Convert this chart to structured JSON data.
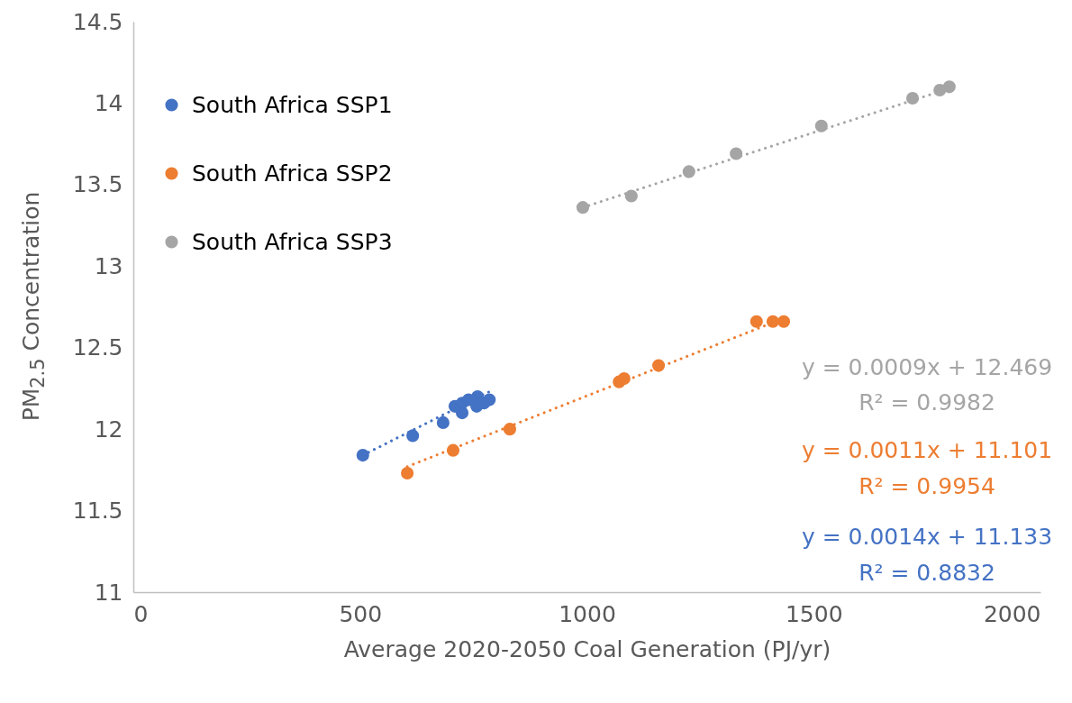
{
  "chart_data": {
    "type": "scatter",
    "xlabel": "Average 2020-2050 Coal Generation (PJ/yr)",
    "ylabel": "PM$_{2.5}$ Concentration",
    "xlim": [
      0,
      2000
    ],
    "xticks": [
      0,
      500,
      1000,
      1500,
      2000
    ],
    "ylim": [
      11,
      14.5
    ],
    "yticks": [
      11,
      11.5,
      12,
      12.5,
      13,
      13.5,
      14,
      14.5
    ],
    "grid": false,
    "legend": "top left",
    "series": [
      {
        "name": "South Africa SSP1",
        "color": "#4472c4",
        "marker": "circle",
        "x": [
          506,
          616,
          683,
          725,
          709,
          725,
          739,
          759,
          757,
          773,
          785
        ],
        "values": [
          11.84,
          11.96,
          12.04,
          12.1,
          12.14,
          12.16,
          12.18,
          12.2,
          12.14,
          12.16,
          12.18
        ]
      },
      {
        "name": "South Africa SSP2",
        "color": "#ed7d31",
        "marker": "circle",
        "x": [
          604,
          705,
          830,
          1071,
          1082,
          1158,
          1374,
          1410,
          1424,
          1434
        ],
        "values": [
          11.73,
          11.87,
          12.0,
          12.29,
          12.31,
          12.39,
          12.66,
          12.66,
          null,
          12.66
        ]
      },
      {
        "name": "South Africa SSP3",
        "color": "#a5a5a5",
        "marker": "circle",
        "x": [
          991,
          1098,
          1225,
          1329,
          1517,
          1718,
          1778,
          1799
        ],
        "values": [
          13.36,
          13.43,
          13.58,
          13.69,
          13.86,
          14.03,
          14.08,
          14.1
        ]
      },
      {
        "type": "line",
        "marker": "none",
        "line_style": "dotted",
        "color": "#4472c4",
        "x": [
          506,
          785
        ],
        "values": [
          11.84,
          12.23
        ]
      },
      {
        "type": "line",
        "marker": "none",
        "line_style": "dotted",
        "color": "#ed7d31",
        "x": [
          604,
          1434
        ],
        "values": [
          11.77,
          12.68
        ]
      },
      {
        "type": "line",
        "marker": "none",
        "line_style": "dotted",
        "color": "#a5a5a5",
        "x": [
          991,
          1799
        ],
        "values": [
          13.36,
          14.09
        ]
      }
    ],
    "annotations": [
      "y = 0.0009x + 12.469",
      "R² = 0.9982",
      "y = 0.0011x + 11.101",
      "R² = 0.9954",
      "y = 0.0014x + 11.133",
      "R² = 0.8832"
    ]
  }
}
